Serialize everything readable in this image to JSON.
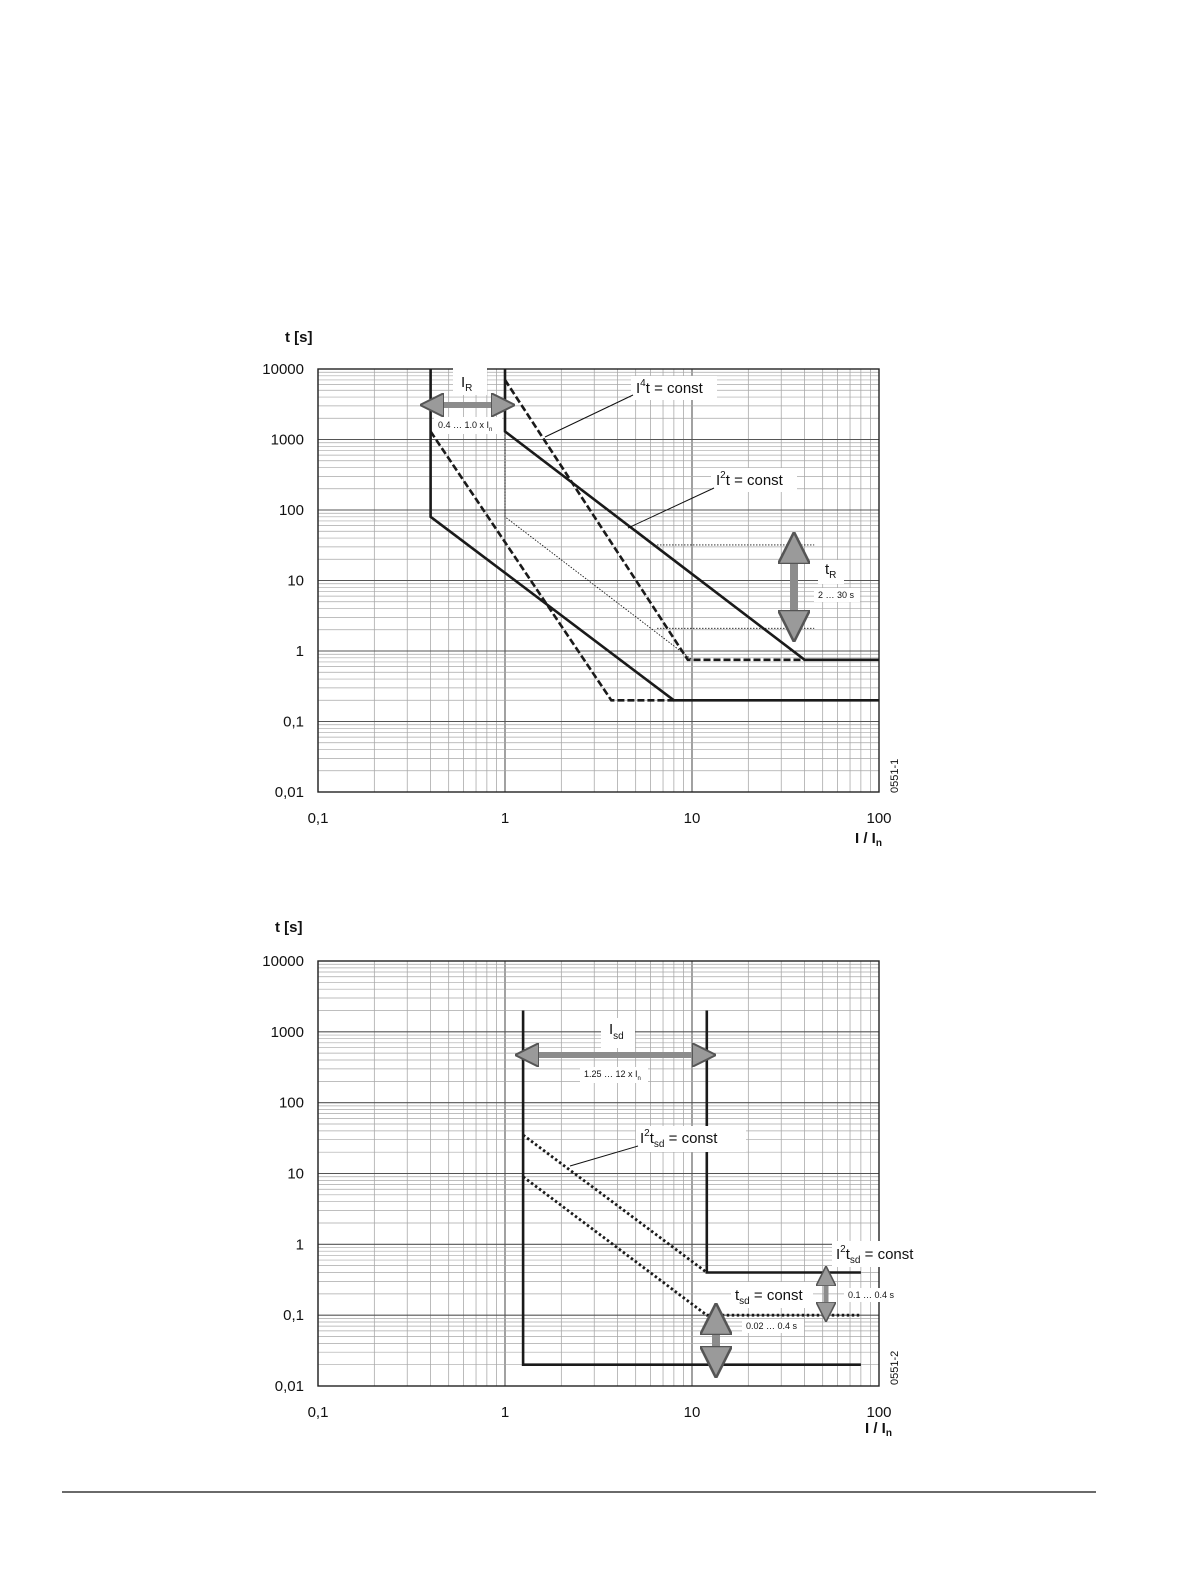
{
  "footer": {
    "rule": true
  },
  "chart_data": [
    {
      "type": "line",
      "ylabel": "t [s]",
      "xlabel_main": "I / I",
      "xlabel_sub": "n",
      "xscale": "log",
      "yscale": "log",
      "xlim": [
        0.1,
        100
      ],
      "ylim": [
        0.01,
        10000
      ],
      "xticks": [
        "0,1",
        "1",
        "10",
        "100"
      ],
      "yticks": [
        "10000",
        "1000",
        "100",
        "10",
        "1",
        "0,1",
        "0,01"
      ],
      "code": "0551-1",
      "grid": true,
      "series": [
        {
          "style": "solid",
          "points": [
            [
              0.4,
              10000
            ],
            [
              0.4,
              80
            ],
            [
              8,
              0.2
            ],
            [
              100,
              0.2
            ]
          ]
        },
        {
          "style": "solid",
          "points": [
            [
              1,
              10000
            ],
            [
              1,
              1300
            ],
            [
              40,
              0.75
            ],
            [
              100,
              0.75
            ]
          ]
        },
        {
          "style": "dashed",
          "points": [
            [
              0.4,
              1300
            ],
            [
              3.7,
              0.2
            ],
            [
              8,
              0.2
            ]
          ]
        },
        {
          "style": "dashed",
          "points": [
            [
              1,
              7000
            ],
            [
              9.5,
              0.75
            ],
            [
              40,
              0.75
            ]
          ]
        },
        {
          "style": "dotted-thin",
          "points": [
            [
              1,
              1300
            ],
            [
              1,
              80
            ],
            [
              10,
              0.75
            ]
          ]
        },
        {
          "style": "dotted-thin",
          "points": [
            [
              6.5,
              32
            ],
            [
              45,
              32
            ]
          ]
        },
        {
          "style": "dotted-thin",
          "points": [
            [
              6.5,
              2.1
            ],
            [
              45,
              2.1
            ]
          ]
        }
      ],
      "annotations": {
        "ir_label": "I",
        "ir_sub": "R",
        "ir_range": "0.4 … 1.0 x I",
        "ir_range_sub": "n",
        "i4t_pre": "I",
        "i4t_sup": "4",
        "i4t_post": "t = const",
        "i2t_pre": "I",
        "i2t_sup": "2",
        "i2t_post": "t = const",
        "tr_label": "t",
        "tr_sub": "R",
        "tr_range": "2 … 30 s"
      }
    },
    {
      "type": "line",
      "ylabel": "t [s]",
      "xlabel_main": "I / I",
      "xlabel_sub": "n",
      "xscale": "log",
      "yscale": "log",
      "xlim": [
        0.1,
        100
      ],
      "ylim": [
        0.01,
        10000
      ],
      "xticks": [
        "0,1",
        "1",
        "10",
        "100"
      ],
      "yticks": [
        "10000",
        "1000",
        "100",
        "10",
        "1",
        "0,1",
        "0,01"
      ],
      "code": "0551-2",
      "grid": true,
      "series": [
        {
          "style": "solid",
          "points": [
            [
              1.25,
              2000
            ],
            [
              1.25,
              0.02
            ],
            [
              80,
              0.02
            ]
          ]
        },
        {
          "style": "solid",
          "points": [
            [
              12,
              2000
            ],
            [
              12,
              0.4
            ],
            [
              80,
              0.4
            ]
          ]
        },
        {
          "style": "dotted",
          "points": [
            [
              1.25,
              35
            ],
            [
              12,
              0.4
            ]
          ]
        },
        {
          "style": "dotted",
          "points": [
            [
              1.25,
              9
            ],
            [
              12,
              0.1
            ],
            [
              80,
              0.1
            ]
          ]
        }
      ],
      "annotations": {
        "isd_label": "I",
        "isd_sub": "sd",
        "isd_range": "1.25 … 12 x I",
        "isd_range_sub": "n",
        "i2tsd_pre": "I",
        "i2tsd_sup": "2",
        "i2tsd_mid": "t",
        "i2tsd_sub": "sd",
        "i2tsd_post": " = const",
        "i2tsd2_pre": "I",
        "i2tsd2_sup": "2",
        "i2tsd2_mid": "t",
        "i2tsd2_sub": "sd",
        "i2tsd2_post": " = const",
        "tsd_label": "t",
        "tsd_sub": "sd",
        "tsd_post": " = const",
        "range_a": "0.1 … 0.4 s",
        "range_b": "0.02 … 0.4 s"
      }
    }
  ]
}
